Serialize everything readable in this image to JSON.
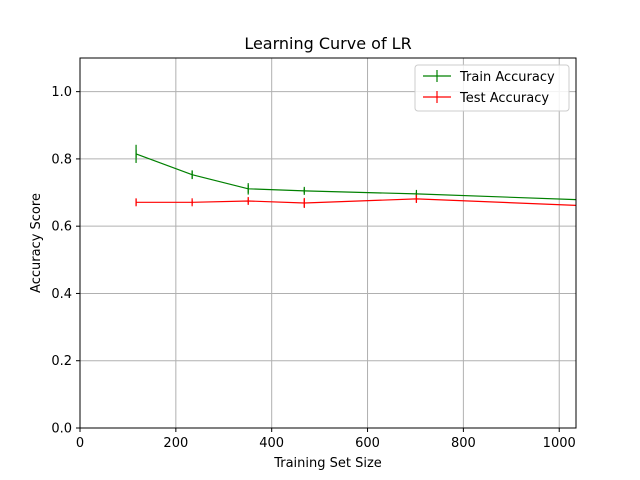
{
  "chart_data": {
    "type": "line",
    "title": "Learning Curve of LR",
    "xlabel": "Training Set Size",
    "ylabel": "Accuracy Score",
    "xlim": [
      0,
      1035
    ],
    "ylim": [
      0.0,
      1.1
    ],
    "xticks": [
      0,
      200,
      400,
      600,
      800,
      1000
    ],
    "yticks": [
      0.0,
      0.2,
      0.4,
      0.6,
      0.8,
      1.0
    ],
    "xtick_labels": [
      "0",
      "200",
      "400",
      "600",
      "800",
      "1000"
    ],
    "ytick_labels": [
      "0.0",
      "0.2",
      "0.4",
      "0.6",
      "0.8",
      "1.0"
    ],
    "grid": true,
    "legend_position": "top-right",
    "x": [
      117,
      234,
      351,
      468,
      702,
      1053
    ],
    "series": [
      {
        "name": "Train Accuracy",
        "color": "#008000",
        "values": [
          0.815,
          0.753,
          0.711,
          0.705,
          0.696,
          0.678
        ],
        "errors": [
          0.027,
          0.013,
          0.017,
          0.007,
          0.006,
          0.004
        ]
      },
      {
        "name": "Test Accuracy",
        "color": "#ff0000",
        "values": [
          0.671,
          0.671,
          0.675,
          0.669,
          0.681,
          0.661
        ],
        "errors": [
          0.01,
          0.006,
          0.008,
          0.015,
          0.011,
          0.009
        ]
      }
    ]
  }
}
